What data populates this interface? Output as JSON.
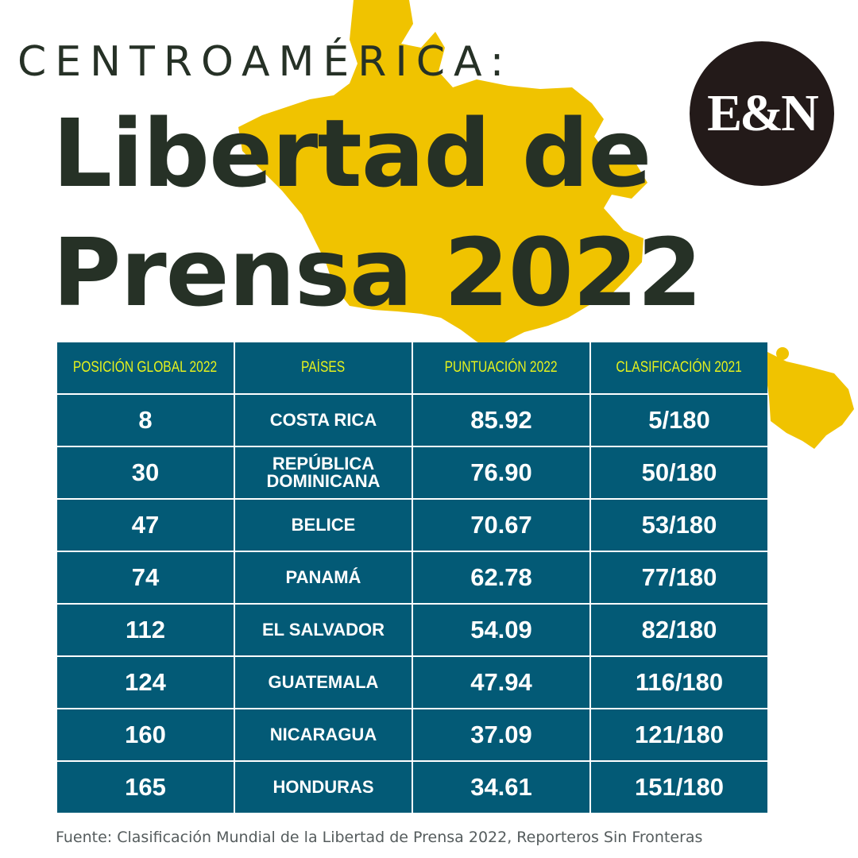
{
  "header": {
    "kicker": "CENTROAMÉRICA:",
    "title_line1": "Libertad de",
    "title_line2": "Prensa 2022",
    "logo_text": "E&N"
  },
  "colors": {
    "map": "#f0c300",
    "table_cell": "#035a76",
    "header_text": "#e6f21c",
    "title_text": "#263126",
    "logo_bg": "#231a19"
  },
  "table": {
    "headers": [
      "POSICIÓN  GLOBAL 2022",
      "PAÍSES",
      "PUNTUACIÓN 2022",
      "CLASIFICACIÓN 2021"
    ],
    "rows": [
      {
        "position": "8",
        "country": "COSTA RICA",
        "score": "85.92",
        "rank_2021": "5/180"
      },
      {
        "position": "30",
        "country": "REPÚBLICA DOMINICANA",
        "score": "76.90",
        "rank_2021": "50/180"
      },
      {
        "position": "47",
        "country": "BELICE",
        "score": "70.67",
        "rank_2021": "53/180"
      },
      {
        "position": "74",
        "country": "PANAMÁ",
        "score": "62.78",
        "rank_2021": "77/180"
      },
      {
        "position": "112",
        "country": "EL SALVADOR",
        "score": "54.09",
        "rank_2021": "82/180"
      },
      {
        "position": "124",
        "country": "GUATEMALA",
        "score": "47.94",
        "rank_2021": "116/180"
      },
      {
        "position": "160",
        "country": "NICARAGUA",
        "score": "37.09",
        "rank_2021": "121/180"
      },
      {
        "position": "165",
        "country": "HONDURAS",
        "score": "34.61",
        "rank_2021": "151/180"
      }
    ]
  },
  "source": "Fuente: Clasificación Mundial de la Libertad de Prensa 2022, Reporteros Sin Fronteras"
}
